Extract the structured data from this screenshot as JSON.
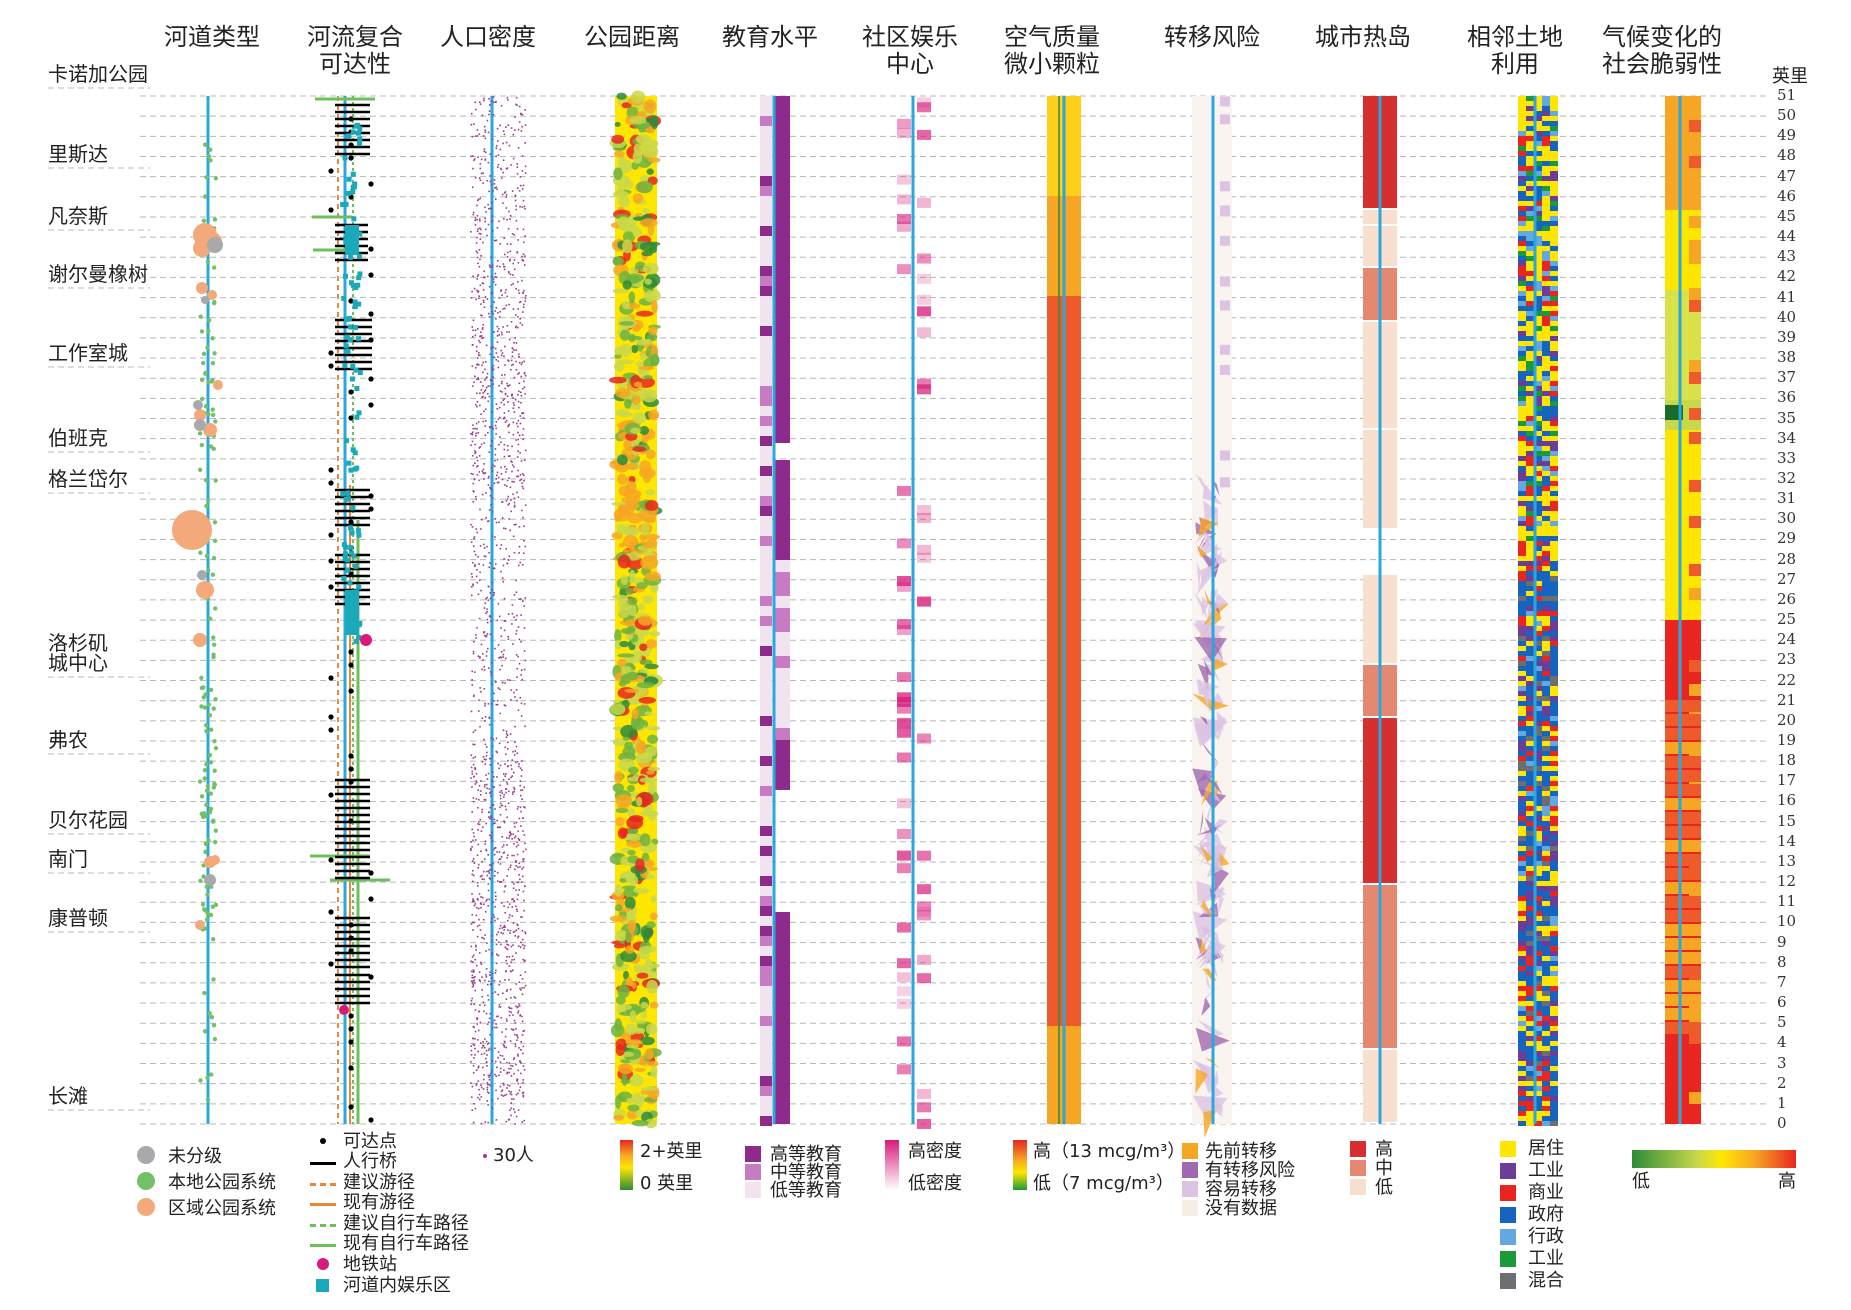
{
  "columns": [
    {
      "id": "channel-type",
      "title": "河道类型"
    },
    {
      "id": "river-access",
      "title": "河流复合\n可达性"
    },
    {
      "id": "population",
      "title": "人口密度"
    },
    {
      "id": "park-distance",
      "title": "公园距离"
    },
    {
      "id": "education",
      "title": "教育水平"
    },
    {
      "id": "rec-centers",
      "title": "社区娱乐\n中心"
    },
    {
      "id": "air-quality",
      "title": "空气质量\n微小颗粒"
    },
    {
      "id": "displacement",
      "title": "转移风险"
    },
    {
      "id": "heat-island",
      "title": "城市热岛"
    },
    {
      "id": "land-use",
      "title": "相邻土地\n利用"
    },
    {
      "id": "vulnerability",
      "title": "气候变化的\n社会脆弱性"
    }
  ],
  "mile_axis": {
    "title": "英里",
    "labels": [
      "51",
      "50",
      "49",
      "48",
      "47",
      "46",
      "45",
      "44",
      "43",
      "42",
      "41",
      "40",
      "39",
      "38",
      "37",
      "36",
      "35",
      "34",
      "33",
      "32",
      "31",
      "30",
      "29",
      "28",
      "27",
      "26",
      "25",
      "24",
      "23",
      "22",
      "21",
      "20",
      "19",
      "18",
      "17",
      "16",
      "15",
      "14",
      "13",
      "12",
      "11",
      "10",
      "9",
      "8",
      "7",
      "6",
      "5",
      "4",
      "3",
      "2",
      "1",
      "0"
    ]
  },
  "locations": [
    {
      "name": "卡诺加公园"
    },
    {
      "name": "里斯达"
    },
    {
      "name": "凡奈斯"
    },
    {
      "name": "谢尔曼橡树"
    },
    {
      "name": "工作室城"
    },
    {
      "name": "伯班克"
    },
    {
      "name": "格兰岱尔"
    },
    {
      "name": "洛杉矶\n城中心"
    },
    {
      "name": "弗农"
    },
    {
      "name": "贝尔花园"
    },
    {
      "name": "南门"
    },
    {
      "name": "康普顿"
    },
    {
      "name": "长滩"
    }
  ],
  "legends": {
    "channel_type": [
      "未分级",
      "本地公园系统",
      "区域公园系统"
    ],
    "access": [
      "可达点",
      "人行桥",
      "建议游径",
      "现有游径",
      "建议自行车路径",
      "现有自行车路径",
      "地铁站",
      "河道内娱乐区"
    ],
    "population": "30人",
    "park_distance": [
      "2+英里",
      "0 英里"
    ],
    "education": [
      "高等教育",
      "中等教育",
      "低等教育"
    ],
    "rec_centers": [
      "高密度",
      "低密度"
    ],
    "air_quality": [
      "高（13 mcg/m³）",
      "低（7 mcg/m³）"
    ],
    "displacement": [
      "先前转移",
      "有转移风险",
      "容易转移",
      "没有数据"
    ],
    "heat_island": [
      "高",
      "中",
      "低"
    ],
    "land_use": [
      "居住",
      "工业",
      "商业",
      "政府",
      "行政",
      "工业",
      "混合"
    ],
    "vulnerability": [
      "低",
      "高"
    ]
  },
  "colors": {
    "river": "#2aa7dc",
    "grey": "#a7a9ac",
    "green": "#73c167",
    "orange": "#f3a97a",
    "teal": "#1aa9b8",
    "pink": "#d81b7a",
    "edu_high": "#8e2a8c",
    "edu_mid": "#c77bc2",
    "edu_low": "#f2e3f1",
    "heat_high": "#d62f2f",
    "heat_mid": "#e58872",
    "heat_low": "#f8e0cf",
    "lu_res": "#ffe600",
    "lu_ind": "#6c3d96",
    "lu_com": "#e8261f",
    "lu_gov": "#1565c0",
    "lu_adm": "#64a8e0",
    "lu_ind2": "#1a9a3a",
    "lu_mix": "#6d6e71"
  }
}
